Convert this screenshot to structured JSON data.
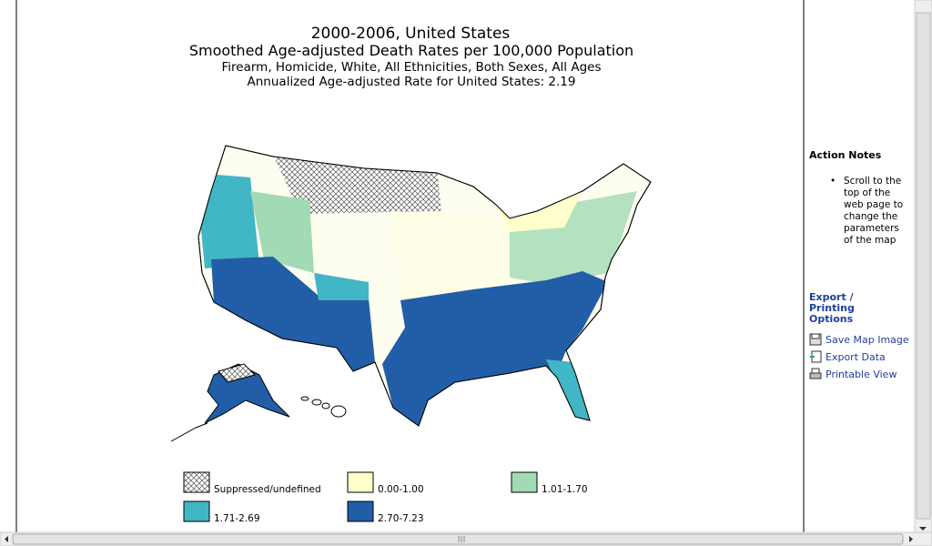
{
  "header": {
    "title": "2000-2006, United States",
    "subtitle": "Smoothed Age-adjusted Death Rates per 100,000 Population",
    "filters": "Firearm, Homicide, White, All Ethnicities, Both Sexes, All Ages",
    "rate_note": "Annualized Age-adjusted Rate for United States: 2.19"
  },
  "legend": [
    {
      "label": "Suppressed/undefined",
      "color": "hatch"
    },
    {
      "label": "0.00-1.00",
      "color": "#ffffcc"
    },
    {
      "label": "1.01-1.70",
      "color": "#a1dab4"
    },
    {
      "label": "1.71-2.69",
      "color": "#41b6c4"
    },
    {
      "label": "2.70-7.23",
      "color": "#225ea8"
    }
  ],
  "sidebar": {
    "action_notes": {
      "title": "Action Notes",
      "items": [
        "Scroll to the top of the web page to change the parameters of the map"
      ]
    },
    "export": {
      "title": "Export / Printing Options",
      "links": [
        "Save Map Image",
        "Export Data",
        "Printable View"
      ]
    }
  }
}
